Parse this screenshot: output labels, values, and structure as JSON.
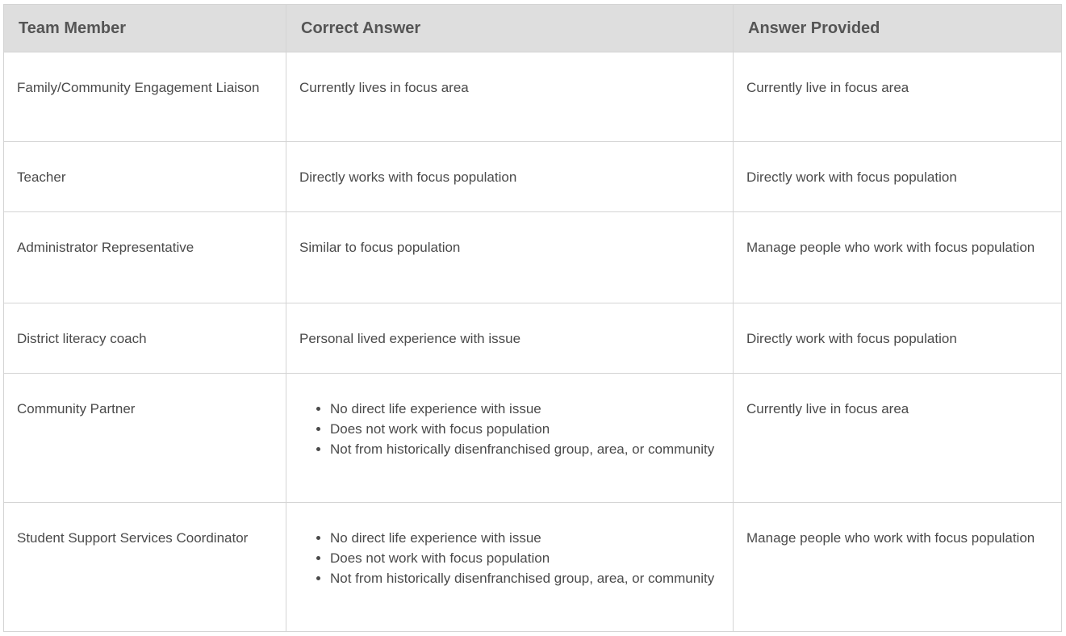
{
  "headers": [
    "Team Member",
    "Correct Answer",
    "Answer Provided"
  ],
  "rows": [
    {
      "member": "Family/Community Engagement Liaison",
      "correct": [
        "Currently lives in focus area"
      ],
      "provided": "Currently live in focus area"
    },
    {
      "member": "Teacher",
      "correct": [
        "Directly works with focus population"
      ],
      "provided": "Directly work with focus population"
    },
    {
      "member": "Administrator Representative",
      "correct": [
        "Similar to focus population"
      ],
      "provided": "Manage people who work with focus population"
    },
    {
      "member": "District literacy coach",
      "correct": [
        "Personal lived experience with issue"
      ],
      "provided": "Directly work with focus population"
    },
    {
      "member": "Community Partner",
      "correct": [
        "No direct life experience with issue",
        "Does not work with focus population",
        "Not from historically disenfranchised group, area, or community"
      ],
      "provided": "Currently live in focus area"
    },
    {
      "member": "Student Support Services Coordinator",
      "correct": [
        "No direct life experience with issue",
        "Does not work with focus population",
        "Not from historically disenfranchised group, area, or community"
      ],
      "provided": "Manage people who work with focus population"
    }
  ]
}
